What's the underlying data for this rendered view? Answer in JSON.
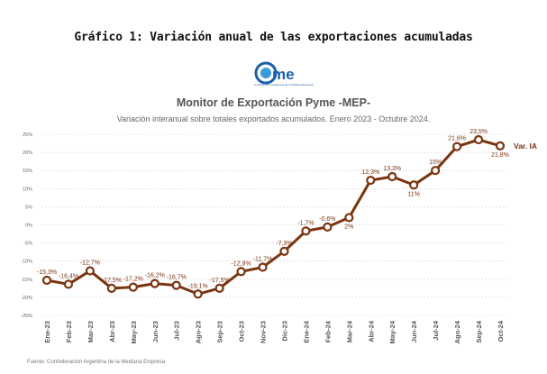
{
  "document_title": "Gráfico 1: Variación anual de las exportaciones acumuladas",
  "logo": {
    "text": "Came",
    "subtitle": "Confederación Argentina de la Mediana Empresa"
  },
  "source_note": "Fuente: Confederación Argentina de la Mediana Empresa",
  "colors": {
    "line": "#7a3410",
    "marker_fill": "#ffffff",
    "label": "#7a3410",
    "grid": "#cfcfcf",
    "axis_text": "#666666"
  },
  "chart_data": {
    "type": "line",
    "title": "Monitor de Exportación Pyme -MEP-",
    "subtitle": "Variación interanual sobre totales exportados acumulados. Enero 2023 - Octubre 2024.",
    "xlabel": "",
    "ylabel": "",
    "ylim": [
      -25,
      25
    ],
    "yticks": [
      -25,
      -20,
      -15,
      -10,
      -5,
      0,
      5,
      10,
      15,
      20,
      25
    ],
    "ytick_labels": [
      "-25%",
      "-20%",
      "-15%",
      "-10%",
      "-5%",
      "0%",
      "5%",
      "10%",
      "15%",
      "20%",
      "25%"
    ],
    "grid": true,
    "categories": [
      "Ene-23",
      "Feb-23",
      "Mar-23",
      "Abr-23",
      "May-23",
      "Jun-23",
      "Jul-23",
      "Ago-23",
      "Sep-23",
      "Oct-23",
      "Nov-23",
      "Dic-23",
      "Ene-24",
      "Feb-24",
      "Mar-24",
      "Abr-24",
      "May-24",
      "Jun-24",
      "Jul-24",
      "Ago-24",
      "Sep-24",
      "Oct-24"
    ],
    "series": [
      {
        "name": "Var. IA",
        "values": [
          -15.3,
          -16.4,
          -12.7,
          -17.5,
          -17.2,
          -16.2,
          -16.7,
          -19.1,
          -17.5,
          -12.9,
          -11.7,
          -7.3,
          -1.7,
          -0.6,
          2,
          12.3,
          13.3,
          11,
          15,
          21.6,
          23.5,
          21.8
        ],
        "labels": [
          "-15,3%",
          "-16,4%",
          "-12,7%",
          "-17,5%",
          "-17,2%",
          "-16,2%",
          "-16,7%",
          "-19,1%",
          "-17,5%",
          "-12,9%",
          "-11,7%",
          "-7,3%",
          "-1,7%",
          "-0,6%",
          "2%",
          "12,3%",
          "13,3%",
          "11%",
          "15%",
          "21,6%",
          "23,5%",
          "21,8%"
        ]
      }
    ],
    "legend": "right-end"
  }
}
